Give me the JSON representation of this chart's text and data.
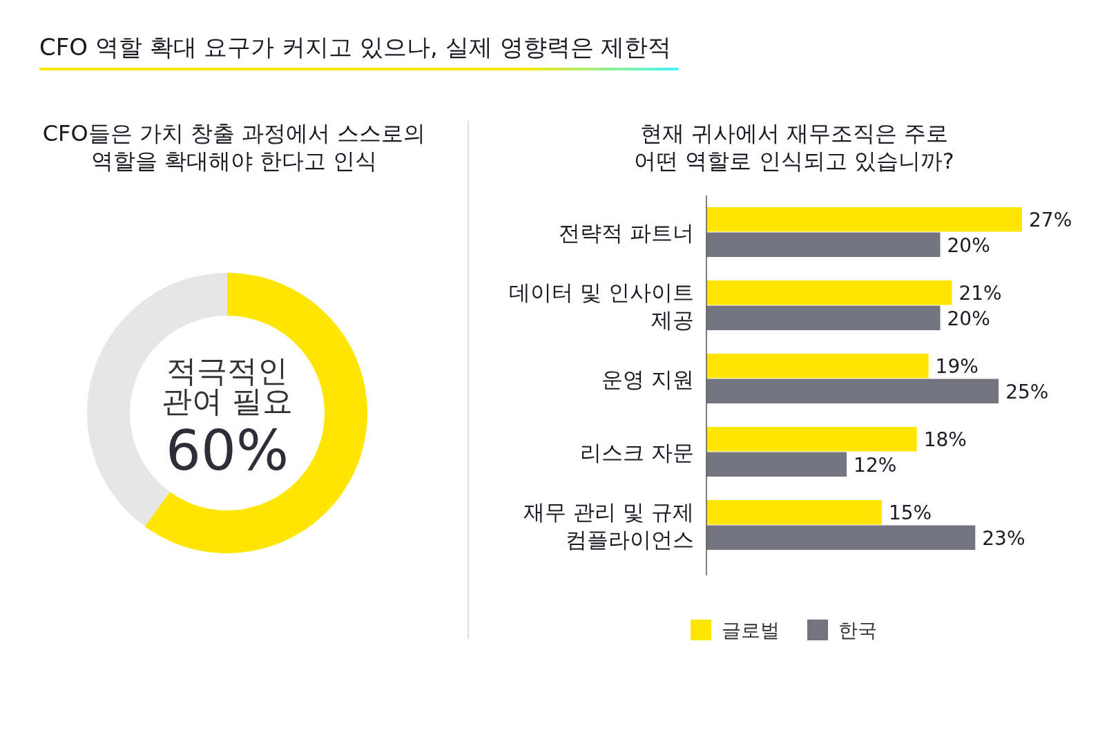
{
  "chart_data": [
    {
      "type": "other",
      "title": "CFO 역할 확대 요구가 커지고 있으나, 실제 영향력은 제한적"
    },
    {
      "type": "donut",
      "title": "CFO들은 가치 창출 과정에서 스스로의 역할을 확대해야 한다고 인식",
      "categories": [
        "적극적인 관여 필요",
        null
      ],
      "values": [
        60,
        40
      ],
      "colors": [
        "#ffe600",
        "#e6e6e6"
      ],
      "value_labels": [
        "60%",
        null
      ]
    },
    {
      "type": "bar",
      "orientation": "horizontal",
      "title": "현재 귀사에서 재무조직은 주로 어떤 역할로 인식되고 있습니까?",
      "categories": [
        "전략적 파트너",
        "데이터 및 인사이트 제공",
        "운영 지원",
        "리스크 자문",
        "재무 관리 및 규제 컴플라이언스"
      ],
      "legend": "bottom",
      "series": [
        {
          "name": "글로벌",
          "color": "#ffe600",
          "values": [
            27,
            21,
            19,
            18,
            15
          ],
          "value_labels": [
            "27%",
            "21%",
            "19%",
            "18%",
            "15%"
          ]
        },
        {
          "name": "한국",
          "color": "#747480",
          "values": [
            20,
            20,
            25,
            12,
            23
          ],
          "value_labels": [
            "20%",
            "20%",
            "25%",
            "12%",
            "23%"
          ]
        }
      ]
    }
  ]
}
